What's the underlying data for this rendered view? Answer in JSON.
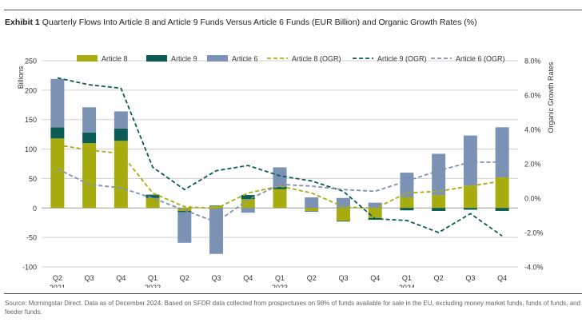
{
  "header": {
    "exhibit_label": "Exhibit 1",
    "title_text": "Quarterly Flows Into Article 8 and Article 9 Funds Versus Article 6 Funds (EUR Billion) and Organic Growth Rates (%)"
  },
  "footer": {
    "source": "Source: Morningstar Direct. Data as of December 2024. Based on SFDR data collected from prospectuses on 98% of funds available for sale in the EU, excluding money market funds, funds of funds, and feeder funds."
  },
  "colors": {
    "article8": "#a7ad10",
    "article9": "#0b5c55",
    "article6": "#7c92b5",
    "art8_ogr": "#a7ad10",
    "art9_ogr": "#0b5c55",
    "art6_ogr": "#7c92b5",
    "grid": "#d0d0d0",
    "axis_text": "#333333"
  },
  "chart_data": {
    "type": "bar",
    "stacked": true,
    "categories": [
      "Q2",
      "Q3",
      "Q4",
      "Q1",
      "Q2",
      "Q3",
      "Q4",
      "Q1",
      "Q2",
      "Q3",
      "Q4",
      "Q1",
      "Q2",
      "Q3",
      "Q4"
    ],
    "year_labels": [
      {
        "index": 0,
        "label": "2021"
      },
      {
        "index": 3,
        "label": "2022"
      },
      {
        "index": 7,
        "label": "2023"
      },
      {
        "index": 11,
        "label": "2024"
      }
    ],
    "series": [
      {
        "name": "Article 8",
        "kind": "bar",
        "axis": "left",
        "values": [
          118,
          110,
          114,
          17,
          -5,
          3,
          15,
          32,
          -5,
          -22,
          -17,
          18,
          22,
          38,
          52
        ]
      },
      {
        "name": "Article 9",
        "kind": "bar",
        "axis": "left",
        "values": [
          19,
          18,
          21,
          5,
          -2,
          1,
          7,
          4,
          -1,
          -1,
          -3,
          -4,
          -5,
          -3,
          -5
        ]
      },
      {
        "name": "Article 6",
        "kind": "bar",
        "axis": "left",
        "values": [
          82,
          43,
          29,
          1,
          -52,
          -78,
          -8,
          33,
          18,
          17,
          9,
          42,
          70,
          85,
          85
        ]
      },
      {
        "name": "Article 8 (OGR)",
        "kind": "line",
        "style": "dashed",
        "axis": "right",
        "values": [
          3.1,
          2.8,
          2.6,
          0.3,
          -0.5,
          -0.6,
          0.3,
          0.7,
          0.3,
          -0.5,
          -0.6,
          0.3,
          0.4,
          0.7,
          1.0
        ]
      },
      {
        "name": "Article 9 (OGR)",
        "kind": "line",
        "style": "dashed",
        "axis": "right",
        "values": [
          7.0,
          6.6,
          6.4,
          1.8,
          0.5,
          1.6,
          1.9,
          1.3,
          1.0,
          0.4,
          -1.2,
          -1.3,
          -2.0,
          -0.9,
          -2.2
        ]
      },
      {
        "name": "Article 6 (OGR)",
        "kind": "line",
        "style": "dashed",
        "axis": "right",
        "values": [
          1.7,
          0.8,
          0.6,
          0.0,
          -0.7,
          -1.4,
          -0.1,
          0.8,
          0.7,
          0.5,
          0.4,
          1.0,
          1.6,
          2.1,
          2.1
        ]
      }
    ],
    "left_axis": {
      "label": "Billions",
      "min": -100,
      "max": 250,
      "ticks": [
        -100,
        -50,
        0,
        50,
        100,
        150,
        200,
        250
      ]
    },
    "right_axis": {
      "label": "Organic Growth Rates",
      "min": -4,
      "max": 8,
      "ticks": [
        -4,
        -2,
        0,
        2,
        4,
        6,
        8
      ],
      "tick_labels": [
        "-4.0%",
        "-2.0%",
        "0.0%",
        "2.0%",
        "4.0%",
        "6.0%",
        "8.0%"
      ]
    },
    "grid": true,
    "legend_position": "top"
  }
}
